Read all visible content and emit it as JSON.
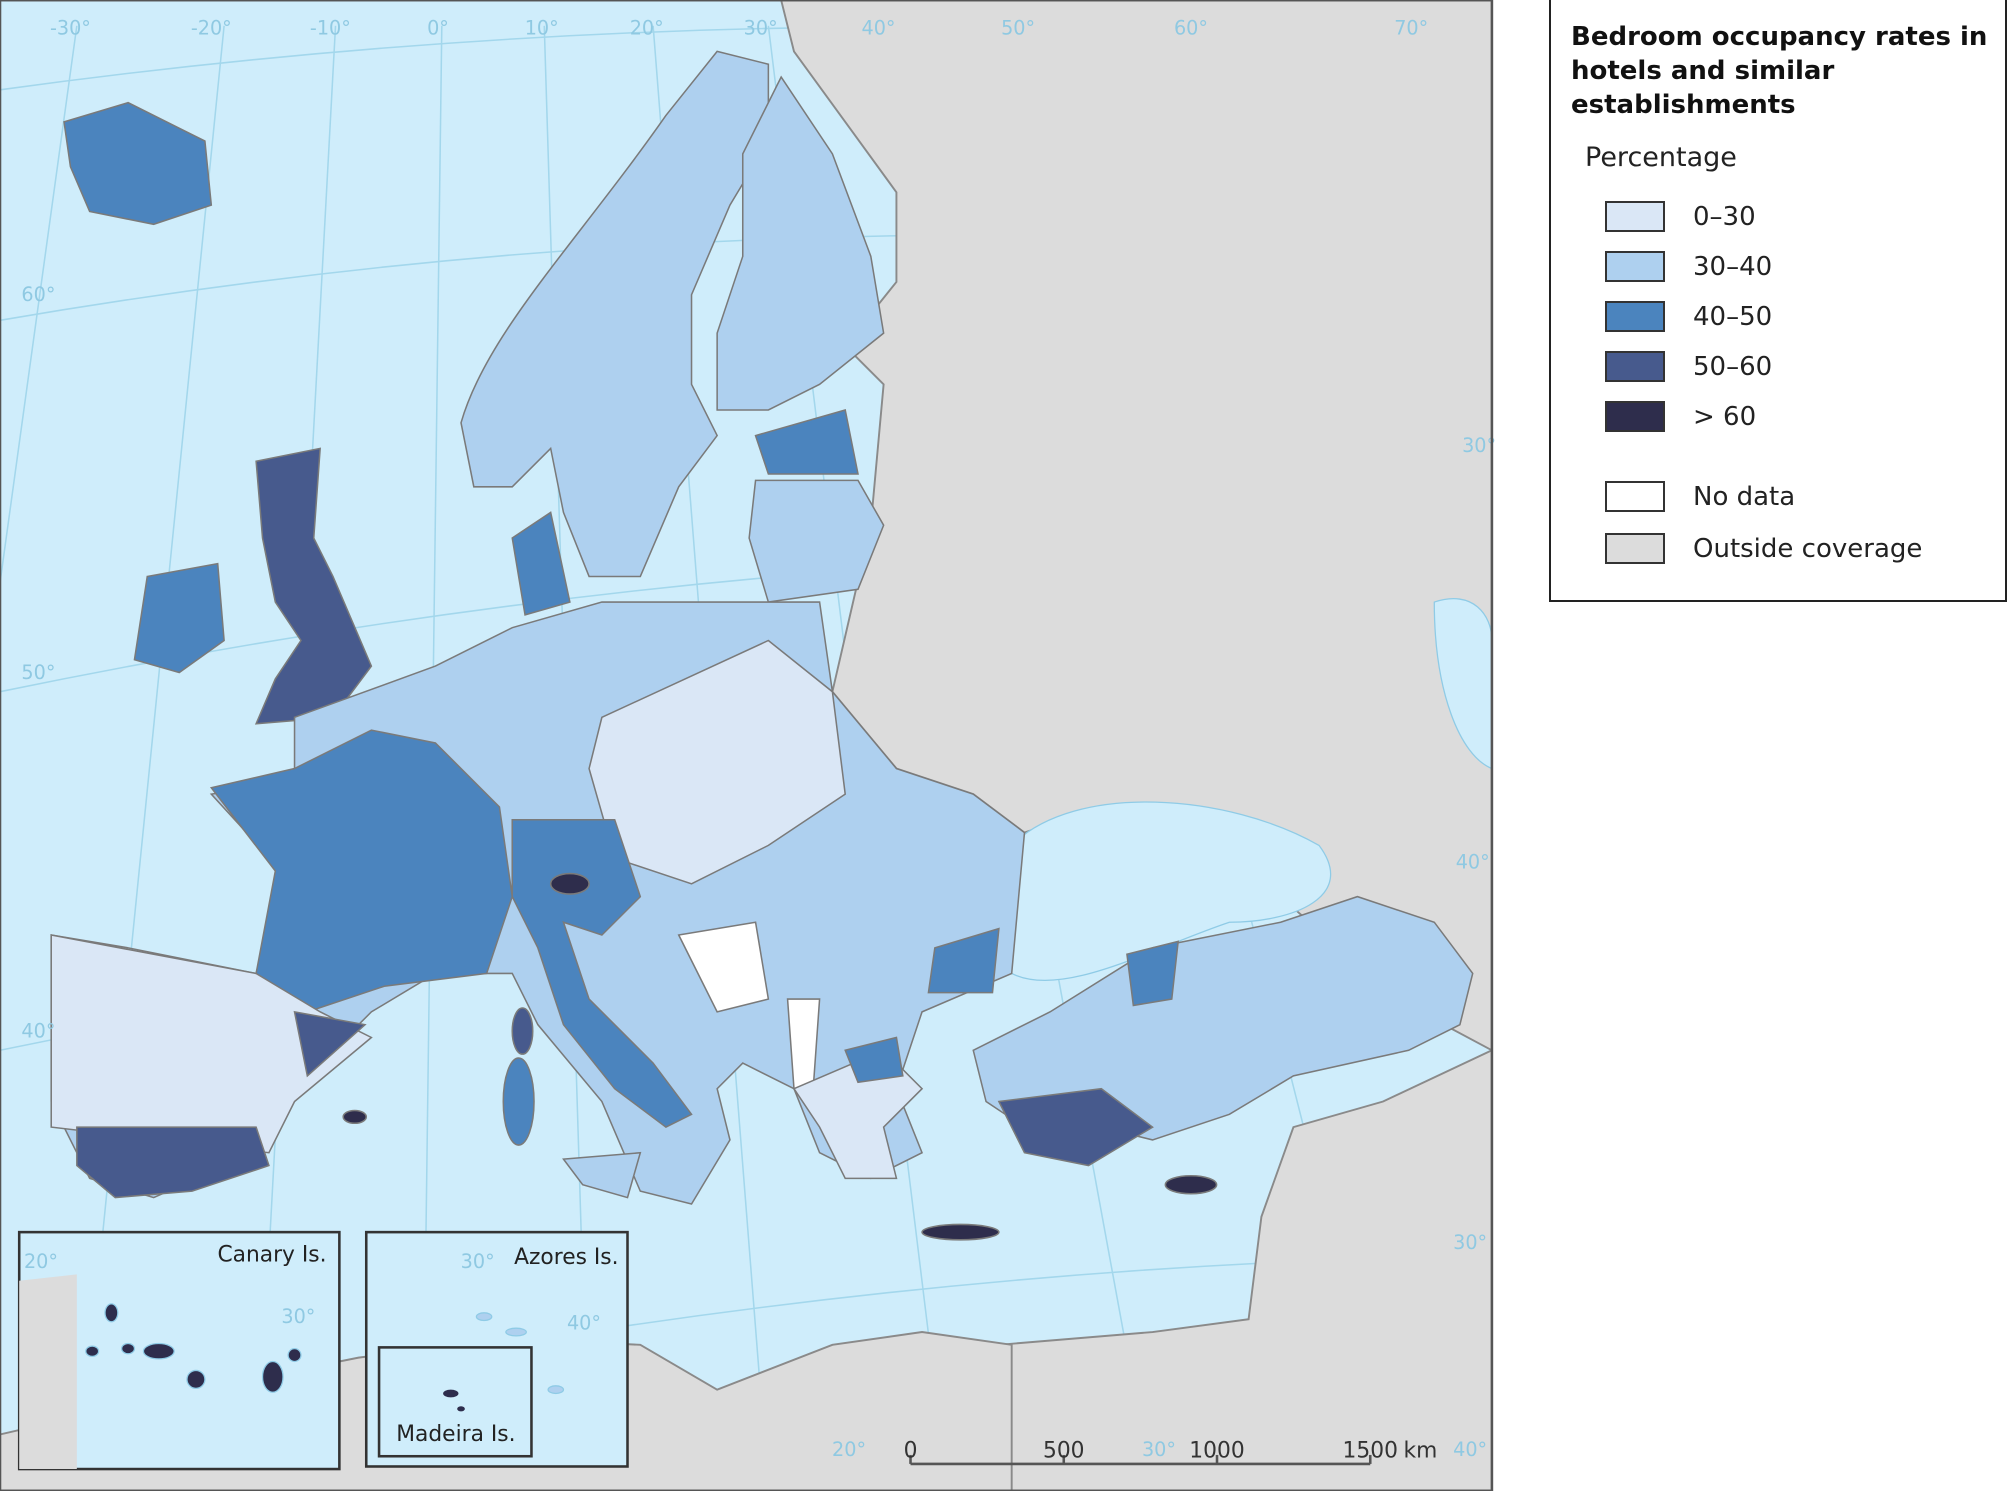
{
  "legend": {
    "title": "Bedroom occupancy rates in hotels and similar establishments",
    "subtitle": "Percentage",
    "items": [
      {
        "label": "0–30",
        "color": "#dae7f6"
      },
      {
        "label": "30–40",
        "color": "#aed0ef"
      },
      {
        "label": "40–50",
        "color": "#4b84be"
      },
      {
        "label": "50–60",
        "color": "#475a8d"
      },
      {
        "label": "> 60",
        "color": "#2e2d4c"
      },
      {
        "label": "No data",
        "color": "#ffffff"
      },
      {
        "label": "Outside coverage",
        "color": "#dcdcdc"
      }
    ]
  },
  "insets": [
    "Canary Is.",
    "Azores Is.",
    "Madeira Is."
  ],
  "scale_bar": {
    "ticks": [
      0,
      500,
      1000,
      1500
    ],
    "unit": "km"
  },
  "graticule_labels": [
    "-30°",
    "-20°",
    "-10°",
    "0°",
    "10°",
    "20°",
    "30°",
    "40°",
    "50°",
    "60°",
    "70°",
    "60°",
    "50°",
    "40°",
    "30°",
    "40°",
    "30°",
    "40°",
    "20°",
    "30°",
    "20°",
    "30°",
    "30°",
    "40°"
  ]
}
